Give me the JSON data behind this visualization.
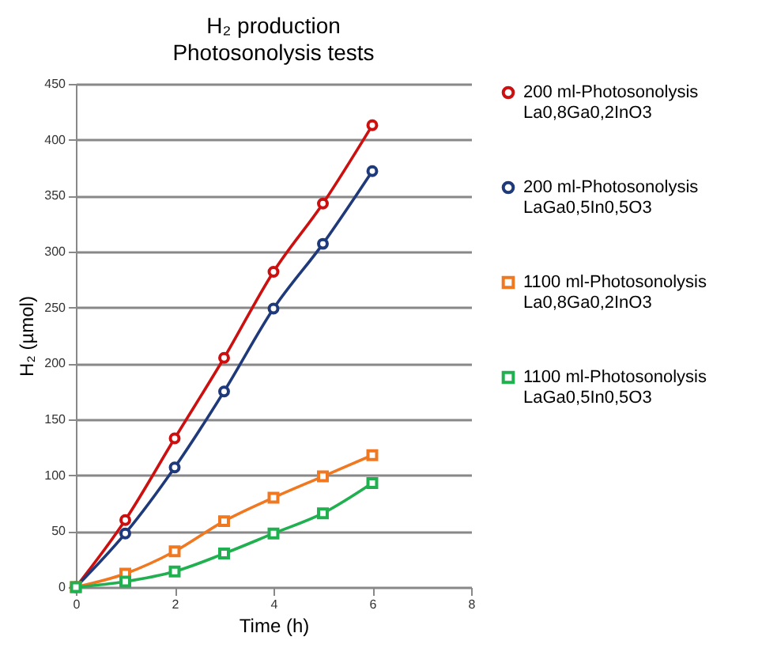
{
  "chart_data": {
    "type": "line",
    "title": "H₂ production",
    "subtitle": "Photosonolysis tests",
    "xlabel": "Time (h)",
    "ylabel": "H₂ (µmol)",
    "x": [
      0,
      1,
      2,
      3,
      4,
      5,
      6
    ],
    "series": [
      {
        "name": "200 ml-Photosonolysis La0,8Ga0,2InO3",
        "color": "#cc1010",
        "marker": "circle",
        "values": [
          0,
          60,
          133,
          205,
          282,
          343,
          413
        ]
      },
      {
        "name": "200 ml-Photosonolysis LaGa0,5In0,5O3",
        "color": "#1f3a7a",
        "marker": "circle",
        "values": [
          0,
          48,
          107,
          175,
          249,
          307,
          372
        ]
      },
      {
        "name": "1100 ml-Photosonolysis La0,8Ga0,2InO3",
        "color": "#f07820",
        "marker": "square",
        "values": [
          0,
          12,
          32,
          59,
          80,
          99,
          118
        ]
      },
      {
        "name": "1100 ml-Photosonolysis LaGa0,5In0,5O3",
        "color": "#20b050",
        "marker": "square",
        "values": [
          0,
          5,
          14,
          30,
          48,
          66,
          93
        ]
      }
    ],
    "xlim": [
      0,
      8
    ],
    "xticks": [
      0,
      2,
      4,
      6,
      8
    ],
    "ylim": [
      0,
      450
    ],
    "yticks": [
      0,
      50,
      100,
      150,
      200,
      250,
      300,
      350,
      400,
      450
    ],
    "grid": "y",
    "legend": "right",
    "line_style": "solid"
  }
}
